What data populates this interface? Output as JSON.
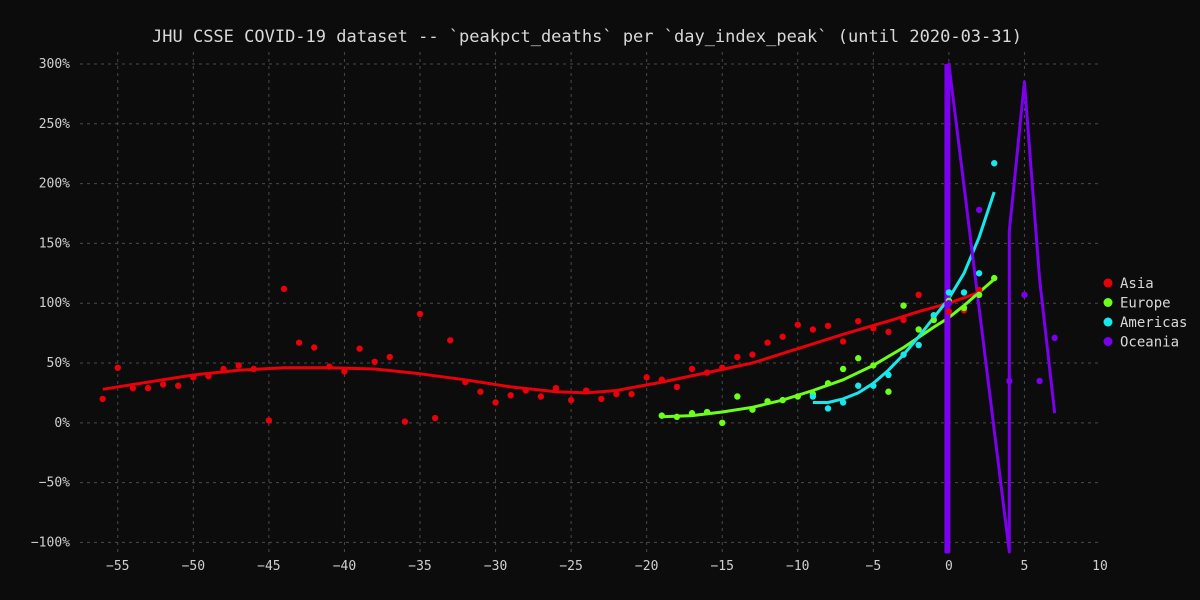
{
  "chart_data": {
    "type": "scatter",
    "title": "JHU CSSE COVID-19 dataset -- `peakpct_deaths` per `day_index_peak` (until 2020-03-31)",
    "xlabel": "",
    "ylabel": "",
    "xlim": [
      -57.5,
      10
    ],
    "ylim": [
      -108,
      310
    ],
    "x_ticks": [
      -55,
      -50,
      -45,
      -40,
      -35,
      -30,
      -25,
      -20,
      -15,
      -10,
      -5,
      0,
      5,
      10
    ],
    "y_ticks": [
      -100,
      -50,
      0,
      50,
      100,
      150,
      200,
      250,
      300
    ],
    "y_tick_labels": [
      "−100%",
      "−50%",
      "0%",
      "50%",
      "100%",
      "150%",
      "200%",
      "250%",
      "300%"
    ],
    "grid": true,
    "legend_position": "right",
    "series": [
      {
        "name": "Asia",
        "color": "#e8000b",
        "points": [
          [
            -56,
            20
          ],
          [
            -55,
            46
          ],
          [
            -54,
            29
          ],
          [
            -53,
            29
          ],
          [
            -52,
            32
          ],
          [
            -51,
            31
          ],
          [
            -50,
            38
          ],
          [
            -49,
            39
          ],
          [
            -48,
            45
          ],
          [
            -47,
            48
          ],
          [
            -46,
            45
          ],
          [
            -45,
            2
          ],
          [
            -44,
            112
          ],
          [
            -43,
            67
          ],
          [
            -42,
            63
          ],
          [
            -41,
            47
          ],
          [
            -40,
            43
          ],
          [
            -39,
            62
          ],
          [
            -38,
            51
          ],
          [
            -37,
            55
          ],
          [
            -36,
            1
          ],
          [
            -35,
            91
          ],
          [
            -34,
            4
          ],
          [
            -33,
            69
          ],
          [
            -32,
            34
          ],
          [
            -31,
            26
          ],
          [
            -30,
            17
          ],
          [
            -29,
            23
          ],
          [
            -28,
            27
          ],
          [
            -27,
            22
          ],
          [
            -26,
            29
          ],
          [
            -25,
            19
          ],
          [
            -24,
            27
          ],
          [
            -23,
            20
          ],
          [
            -22,
            24
          ],
          [
            -21,
            24
          ],
          [
            -20,
            38
          ],
          [
            -19,
            36
          ],
          [
            -18,
            30
          ],
          [
            -17,
            45
          ],
          [
            -16,
            42
          ],
          [
            -15,
            46
          ],
          [
            -14,
            55
          ],
          [
            -13,
            57
          ],
          [
            -12,
            67
          ],
          [
            -11,
            72
          ],
          [
            -10,
            82
          ],
          [
            -9,
            78
          ],
          [
            -8,
            81
          ],
          [
            -7,
            68
          ],
          [
            -6,
            85
          ],
          [
            -5,
            79
          ],
          [
            -4,
            76
          ],
          [
            -3,
            86
          ],
          [
            -2,
            107
          ],
          [
            -1,
            88
          ],
          [
            0,
            93
          ],
          [
            1,
            94
          ],
          [
            2,
            111
          ]
        ],
        "trend": [
          [
            -56,
            28
          ],
          [
            -53,
            34
          ],
          [
            -50,
            40
          ],
          [
            -47,
            44
          ],
          [
            -44,
            46
          ],
          [
            -41,
            46
          ],
          [
            -38,
            45
          ],
          [
            -35,
            41
          ],
          [
            -32,
            36
          ],
          [
            -29,
            30
          ],
          [
            -26,
            26
          ],
          [
            -24,
            25
          ],
          [
            -22,
            27
          ],
          [
            -19,
            34
          ],
          [
            -16,
            42
          ],
          [
            -13,
            50
          ],
          [
            -10,
            62
          ],
          [
            -7,
            74
          ],
          [
            -4,
            85
          ],
          [
            -2,
            93
          ],
          [
            0,
            100
          ],
          [
            2,
            109
          ]
        ]
      },
      {
        "name": "Europe",
        "color": "#6cff1a",
        "points": [
          [
            -19,
            6
          ],
          [
            -18,
            5
          ],
          [
            -17,
            8
          ],
          [
            -16,
            9
          ],
          [
            -15,
            0
          ],
          [
            -14,
            22
          ],
          [
            -13,
            11
          ],
          [
            -12,
            18
          ],
          [
            -11,
            19
          ],
          [
            -10,
            22
          ],
          [
            -9,
            24
          ],
          [
            -8,
            33
          ],
          [
            -7,
            45
          ],
          [
            -6,
            54
          ],
          [
            -5,
            48
          ],
          [
            -4,
            26
          ],
          [
            -3,
            98
          ],
          [
            -2,
            78
          ],
          [
            -1,
            86
          ],
          [
            0,
            102
          ],
          [
            1,
            96
          ],
          [
            2,
            107
          ],
          [
            3,
            121
          ]
        ],
        "trend": [
          [
            -19,
            5
          ],
          [
            -17,
            6
          ],
          [
            -15,
            9
          ],
          [
            -13,
            13
          ],
          [
            -11,
            19
          ],
          [
            -9,
            27
          ],
          [
            -7,
            36
          ],
          [
            -5,
            48
          ],
          [
            -3,
            63
          ],
          [
            -1,
            80
          ],
          [
            0,
            88
          ],
          [
            1,
            98
          ],
          [
            2,
            109
          ],
          [
            3,
            120
          ]
        ]
      },
      {
        "name": "Americas",
        "color": "#17e8ec",
        "points": [
          [
            -9,
            22
          ],
          [
            -8,
            12
          ],
          [
            -7,
            17
          ],
          [
            -6,
            31
          ],
          [
            -5,
            31
          ],
          [
            -4,
            40
          ],
          [
            -3,
            57
          ],
          [
            -2,
            65
          ],
          [
            -1,
            90
          ],
          [
            0,
            109
          ],
          [
            1,
            109
          ],
          [
            2,
            125
          ],
          [
            3,
            217
          ]
        ],
        "trend": [
          [
            -9,
            17
          ],
          [
            -8,
            17
          ],
          [
            -7,
            20
          ],
          [
            -6,
            25
          ],
          [
            -5,
            33
          ],
          [
            -4,
            44
          ],
          [
            -3,
            57
          ],
          [
            -2,
            72
          ],
          [
            -1,
            88
          ],
          [
            0,
            104
          ],
          [
            1,
            125
          ],
          [
            2,
            155
          ],
          [
            3,
            193
          ]
        ]
      },
      {
        "name": "Oceania",
        "color": "#7a00ee",
        "points": [
          [
            0,
            100
          ],
          [
            2,
            178
          ],
          [
            4,
            35
          ],
          [
            5,
            107
          ],
          [
            6,
            35
          ],
          [
            7,
            71
          ]
        ],
        "trend": [
          [
            -0.2,
            300
          ],
          [
            -0.2,
            -110
          ],
          [
            0,
            -110
          ],
          [
            0,
            300
          ],
          [
            4,
            -110
          ],
          [
            4,
            160
          ],
          [
            5,
            285
          ],
          [
            6,
            120
          ],
          [
            7,
            8
          ]
        ]
      }
    ]
  }
}
